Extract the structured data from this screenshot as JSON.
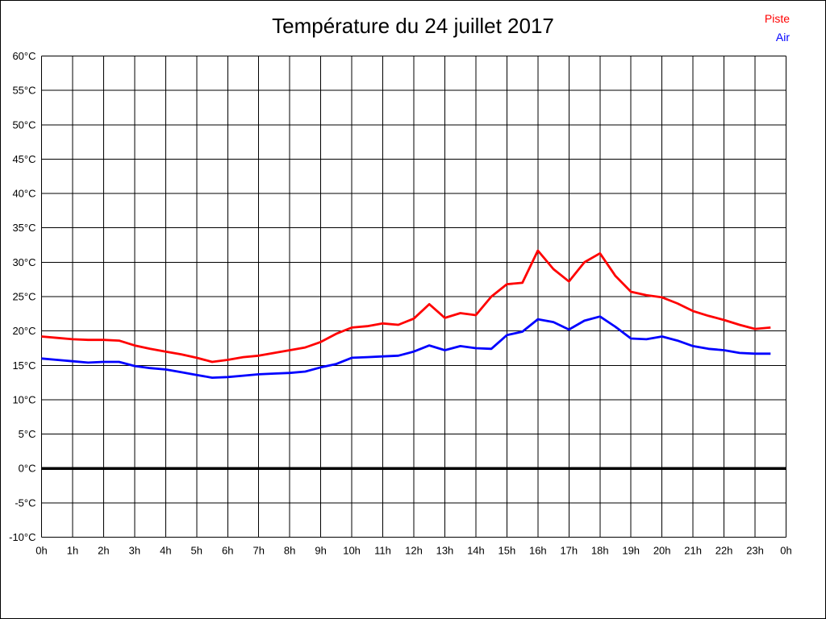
{
  "frame": {
    "background": "#ffffff",
    "border_color": "#000000"
  },
  "chart_data": {
    "type": "line",
    "title": "Température du 24 juillet 2017",
    "grid": "on",
    "legend_position": "top-right",
    "x_axis": {
      "unit": "h",
      "min": 0,
      "max": 24,
      "tick_step": 1,
      "tick_labels": [
        "0h",
        "1h",
        "2h",
        "3h",
        "4h",
        "5h",
        "6h",
        "7h",
        "8h",
        "9h",
        "10h",
        "11h",
        "12h",
        "13h",
        "14h",
        "15h",
        "16h",
        "17h",
        "18h",
        "19h",
        "20h",
        "21h",
        "22h",
        "23h",
        "0h"
      ]
    },
    "y_axis": {
      "unit": "°C",
      "min": -10,
      "max": 60,
      "tick_step": 5,
      "tick_labels": [
        "60°C",
        "55°C",
        "50°C",
        "45°C",
        "40°C",
        "35°C",
        "30°C",
        "25°C",
        "20°C",
        "15°C",
        "10°C",
        "5°C",
        "0°C",
        "-5°C",
        "-10°C"
      ]
    },
    "zero_line_value": 0,
    "zero_line_color": "#000000",
    "grid_color": "#000000",
    "x": [
      0,
      0.5,
      1,
      1.5,
      2,
      2.5,
      3,
      3.5,
      4,
      4.5,
      5,
      5.5,
      6,
      6.5,
      7,
      7.5,
      8,
      8.5,
      9,
      9.5,
      10,
      10.5,
      11,
      11.5,
      12,
      12.5,
      13,
      13.5,
      14,
      14.5,
      15,
      15.5,
      16,
      16.5,
      17,
      17.5,
      18,
      18.5,
      19,
      19.5,
      20,
      20.5,
      21,
      21.5,
      22,
      22.5,
      23,
      23.5
    ],
    "series": [
      {
        "name": "Piste",
        "color": "#ff0000",
        "values": [
          19.2,
          19.0,
          18.8,
          18.7,
          18.7,
          18.6,
          17.9,
          17.4,
          17.0,
          16.6,
          16.1,
          15.5,
          15.8,
          16.2,
          16.4,
          16.8,
          17.2,
          17.6,
          18.4,
          19.6,
          20.5,
          20.7,
          21.1,
          20.9,
          21.8,
          23.9,
          21.9,
          22.6,
          22.3,
          25.0,
          26.8,
          27.0,
          31.7,
          29.0,
          27.2,
          30.0,
          31.3,
          28.0,
          25.7,
          25.2,
          24.9,
          24.0,
          22.9,
          22.2,
          21.6,
          20.9,
          20.3,
          20.5
        ]
      },
      {
        "name": "Air",
        "color": "#0000ff",
        "values": [
          16.0,
          15.8,
          15.6,
          15.4,
          15.5,
          15.5,
          14.9,
          14.6,
          14.4,
          14.0,
          13.6,
          13.2,
          13.3,
          13.5,
          13.7,
          13.8,
          13.9,
          14.1,
          14.7,
          15.2,
          16.1,
          16.2,
          16.3,
          16.4,
          17.0,
          17.9,
          17.2,
          17.8,
          17.5,
          17.4,
          19.4,
          19.9,
          21.7,
          21.3,
          20.2,
          21.5,
          22.1,
          20.6,
          18.9,
          18.8,
          19.2,
          18.6,
          17.8,
          17.4,
          17.2,
          16.8,
          16.7,
          16.7
        ]
      }
    ]
  }
}
